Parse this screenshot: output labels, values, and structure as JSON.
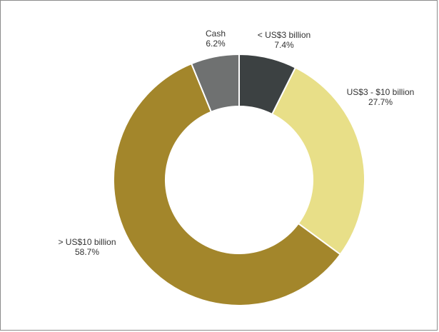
{
  "chart_data": {
    "type": "pie",
    "donut": true,
    "title": "",
    "slices": [
      {
        "name": "< US$3 billion",
        "label": "< US$3 billion",
        "value_label": "7.4%",
        "value": 7.4,
        "color": "#3c4142"
      },
      {
        "name": "US$3 - $10 billion",
        "label": "US$3 - $10 billion",
        "value_label": "27.7%",
        "value": 27.7,
        "color": "#e8df88"
      },
      {
        "name": "> US$10 billion",
        "label": "> US$10 billion",
        "value_label": "58.7%",
        "value": 58.7,
        "color": "#a3862b"
      },
      {
        "name": "Cash",
        "label": "Cash",
        "value_label": "6.2%",
        "value": 6.2,
        "color": "#6f7171"
      }
    ],
    "start_angle_deg": 0,
    "direction": "clockwise",
    "slice_separator_color": "#ffffff",
    "legend": "none"
  }
}
